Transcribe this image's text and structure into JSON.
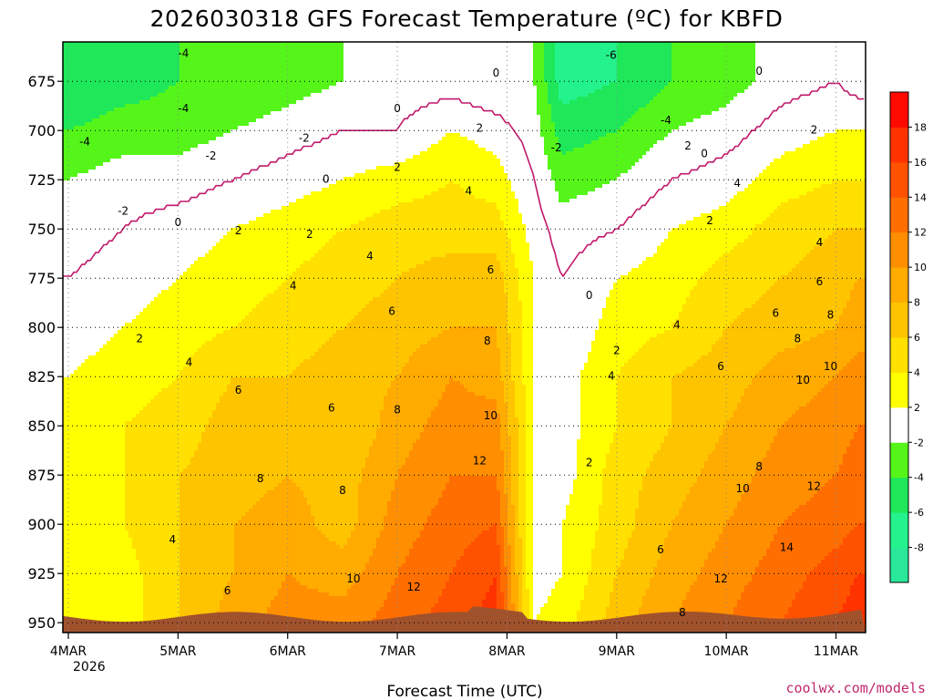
{
  "chart_data": {
    "type": "heatmap",
    "title": "2026030318 GFS Forecast Temperature (ºC) for KBFD",
    "xlabel": "Forecast Time (UTC)",
    "ylabel": "",
    "x_ticks": [
      "4MAR",
      "5MAR",
      "6MAR",
      "7MAR",
      "8MAR",
      "9MAR",
      "10MAR",
      "11MAR"
    ],
    "x_tick_year": "2026",
    "x_range_days": [
      -0.05,
      7.27
    ],
    "y_ticks": [
      675,
      700,
      725,
      750,
      775,
      800,
      825,
      850,
      875,
      900,
      925,
      950
    ],
    "y_range_hpa": [
      655,
      955
    ],
    "y_scale": "linear, inverted (pressure decreasing upward)",
    "grid": true,
    "colorbar": {
      "ticks": [
        -8,
        -6,
        -4,
        -2,
        2,
        4,
        6,
        8,
        10,
        12,
        14,
        16,
        18
      ],
      "bands": [
        {
          "lo": -10,
          "hi": -8,
          "color": "#2ae89a"
        },
        {
          "lo": -8,
          "hi": -6,
          "color": "#24f28c"
        },
        {
          "lo": -6,
          "hi": -4,
          "color": "#1ee85a"
        },
        {
          "lo": -4,
          "hi": -2,
          "color": "#55f51a"
        },
        {
          "lo": -2,
          "hi": 2,
          "color": "#ffffff"
        },
        {
          "lo": 2,
          "hi": 4,
          "color": "#ffff00"
        },
        {
          "lo": 4,
          "hi": 6,
          "color": "#ffe000"
        },
        {
          "lo": 6,
          "hi": 8,
          "color": "#ffc400"
        },
        {
          "lo": 8,
          "hi": 10,
          "color": "#ffab00"
        },
        {
          "lo": 10,
          "hi": 12,
          "color": "#ff8f00"
        },
        {
          "lo": 12,
          "hi": 14,
          "color": "#ff6e00"
        },
        {
          "lo": 14,
          "hi": 16,
          "color": "#ff5200"
        },
        {
          "lo": 16,
          "hi": 18,
          "color": "#ff3300"
        },
        {
          "lo": 18,
          "hi": 20,
          "color": "#ff0a00"
        }
      ]
    },
    "terrain_color": "#a0522d",
    "zero_isotherm_color": "#c0186a",
    "temperature_samples": {
      "time_days": [
        0,
        0.5,
        1,
        1.5,
        2,
        2.5,
        3,
        3.5,
        3.9,
        4.25,
        4.5,
        5,
        5.5,
        6,
        6.5,
        7,
        7.2
      ],
      "pressure_hpa": [
        675,
        700,
        725,
        750,
        775,
        800,
        825,
        850,
        875,
        900,
        925,
        950
      ],
      "temperature_c": [
        [
          -6,
          -5,
          -4,
          -4,
          -3,
          -2,
          -1,
          -1,
          -2,
          -2,
          -7,
          -6,
          -4,
          -3,
          -1,
          0,
          -1
        ],
        [
          -4,
          -3,
          -3,
          -2,
          -1,
          0,
          0,
          2,
          1,
          -1,
          -5,
          -4,
          -2,
          -1,
          1,
          2,
          2
        ],
        [
          -2,
          -1,
          -1,
          0,
          1,
          2,
          3,
          4,
          3,
          0,
          -3,
          -2,
          0,
          1,
          3,
          4,
          4
        ],
        [
          -1,
          0,
          1,
          2,
          3,
          4,
          5,
          5,
          5,
          1,
          -1,
          0,
          2,
          3,
          5,
          6,
          6
        ],
        [
          0,
          1,
          2,
          3,
          4,
          5,
          6,
          7,
          7,
          2,
          0,
          2,
          3,
          5,
          6,
          7,
          8
        ],
        [
          1,
          2,
          3,
          4,
          5,
          6,
          7,
          8,
          8,
          2,
          0,
          3,
          4,
          6,
          7,
          8,
          9
        ],
        [
          2,
          3,
          4,
          6,
          6,
          7,
          8,
          10,
          9,
          2,
          1,
          4,
          6,
          7,
          9,
          10,
          11
        ],
        [
          3,
          4,
          5,
          7,
          7,
          6,
          9,
          11,
          11,
          2,
          1,
          4,
          6,
          8,
          10,
          11,
          12
        ],
        [
          3,
          4,
          6,
          7,
          8,
          7,
          10,
          12,
          12,
          2,
          1,
          5,
          7,
          9,
          11,
          12,
          13
        ],
        [
          3,
          4,
          6,
          8,
          9,
          7,
          11,
          13,
          14,
          1,
          2,
          5,
          8,
          10,
          12,
          13,
          14
        ],
        [
          2,
          3,
          6,
          8,
          10,
          9,
          12,
          14,
          16,
          1,
          2,
          6,
          9,
          11,
          13,
          15,
          16
        ],
        [
          2,
          3,
          6,
          9,
          11,
          11,
          13,
          15,
          17,
          2,
          3,
          7,
          10,
          12,
          14,
          16,
          17
        ]
      ]
    },
    "contour_labels": [
      {
        "t": 1.05,
        "p": 661,
        "text": "-4"
      },
      {
        "t": 1.05,
        "p": 689,
        "text": "-4"
      },
      {
        "t": 0.15,
        "p": 706,
        "text": "-4"
      },
      {
        "t": 1.3,
        "p": 713,
        "text": "-2"
      },
      {
        "t": 2.15,
        "p": 704,
        "text": "-2"
      },
      {
        "t": 0.5,
        "p": 741,
        "text": "-2"
      },
      {
        "t": 1.0,
        "p": 747,
        "text": "0"
      },
      {
        "t": 2.35,
        "p": 725,
        "text": "0"
      },
      {
        "t": 3.0,
        "p": 689,
        "text": "0"
      },
      {
        "t": 3.9,
        "p": 671,
        "text": "0"
      },
      {
        "t": 1.55,
        "p": 751,
        "text": "2"
      },
      {
        "t": 2.2,
        "p": 753,
        "text": "2"
      },
      {
        "t": 3.0,
        "p": 719,
        "text": "2"
      },
      {
        "t": 3.75,
        "p": 699,
        "text": "2"
      },
      {
        "t": 0.65,
        "p": 806,
        "text": "2"
      },
      {
        "t": 1.1,
        "p": 818,
        "text": "4"
      },
      {
        "t": 2.05,
        "p": 779,
        "text": "4"
      },
      {
        "t": 2.75,
        "p": 764,
        "text": "4"
      },
      {
        "t": 3.65,
        "p": 731,
        "text": "4"
      },
      {
        "t": 1.55,
        "p": 832,
        "text": "6"
      },
      {
        "t": 2.4,
        "p": 841,
        "text": "6"
      },
      {
        "t": 2.95,
        "p": 792,
        "text": "6"
      },
      {
        "t": 3.85,
        "p": 771,
        "text": "6"
      },
      {
        "t": 3.0,
        "p": 842,
        "text": "8"
      },
      {
        "t": 3.82,
        "p": 807,
        "text": "8"
      },
      {
        "t": 1.75,
        "p": 877,
        "text": "8"
      },
      {
        "t": 2.5,
        "p": 883,
        "text": "8"
      },
      {
        "t": 3.85,
        "p": 845,
        "text": "10"
      },
      {
        "t": 3.75,
        "p": 868,
        "text": "12"
      },
      {
        "t": 2.6,
        "p": 928,
        "text": "10"
      },
      {
        "t": 3.15,
        "p": 932,
        "text": "12"
      },
      {
        "t": 0.95,
        "p": 908,
        "text": "4"
      },
      {
        "t": 1.45,
        "p": 934,
        "text": "6"
      },
      {
        "t": 4.75,
        "p": 869,
        "text": "2"
      },
      {
        "t": 4.75,
        "p": 784,
        "text": "0"
      },
      {
        "t": 4.95,
        "p": 662,
        "text": "-6"
      },
      {
        "t": 5.45,
        "p": 695,
        "text": "-4"
      },
      {
        "t": 4.45,
        "p": 709,
        "text": "-2"
      },
      {
        "t": 5.65,
        "p": 708,
        "text": "2"
      },
      {
        "t": 5.8,
        "p": 712,
        "text": "0"
      },
      {
        "t": 5.85,
        "p": 746,
        "text": "2"
      },
      {
        "t": 6.1,
        "p": 727,
        "text": "4"
      },
      {
        "t": 6.3,
        "p": 670,
        "text": "0"
      },
      {
        "t": 6.8,
        "p": 700,
        "text": "2"
      },
      {
        "t": 6.85,
        "p": 757,
        "text": "4"
      },
      {
        "t": 6.85,
        "p": 777,
        "text": "6"
      },
      {
        "t": 6.45,
        "p": 793,
        "text": "6"
      },
      {
        "t": 6.65,
        "p": 806,
        "text": "8"
      },
      {
        "t": 6.95,
        "p": 794,
        "text": "8"
      },
      {
        "t": 5.0,
        "p": 812,
        "text": "2"
      },
      {
        "t": 4.95,
        "p": 825,
        "text": "4"
      },
      {
        "t": 5.55,
        "p": 799,
        "text": "4"
      },
      {
        "t": 5.95,
        "p": 820,
        "text": "6"
      },
      {
        "t": 6.7,
        "p": 827,
        "text": "10"
      },
      {
        "t": 6.95,
        "p": 820,
        "text": "10"
      },
      {
        "t": 6.3,
        "p": 871,
        "text": "8"
      },
      {
        "t": 6.15,
        "p": 882,
        "text": "10"
      },
      {
        "t": 6.8,
        "p": 881,
        "text": "12"
      },
      {
        "t": 5.4,
        "p": 913,
        "text": "6"
      },
      {
        "t": 6.55,
        "p": 912,
        "text": "14"
      },
      {
        "t": 5.95,
        "p": 928,
        "text": "12"
      },
      {
        "t": 5.6,
        "p": 945,
        "text": "8"
      }
    ],
    "credit": "coolwx.com/models"
  }
}
